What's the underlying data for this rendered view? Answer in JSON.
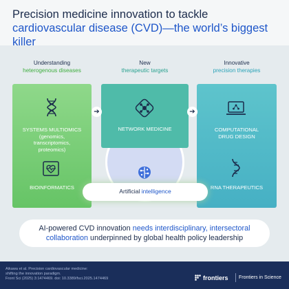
{
  "title": {
    "line1": "Precision medicine innovation to tackle",
    "line2": "cardiovascular disease (CVD)—the world’s biggest killer"
  },
  "columns": [
    {
      "head1": "Understanding",
      "head2": "heterogenous diseases",
      "head2_color": "#3fae3f"
    },
    {
      "head1": "New",
      "head2": "therapeutic targets",
      "head2_color": "#2aa290"
    },
    {
      "head1": "Innovative",
      "head2": "precision therapies",
      "head2_color": "#2ba3b8"
    }
  ],
  "cards": {
    "systems": {
      "line1": "SYSTEMS MULTIOMICS",
      "line2": "(genomics,",
      "line3": "transcriptomics,",
      "line4": "proteomics)",
      "icon": "dna-icon"
    },
    "bioinformatics": {
      "label": "BIOINFORMATICS",
      "icon": "heart-monitor-icon"
    },
    "network": {
      "label": "NETWORK MEDICINE",
      "icon": "network-molecule-icon"
    },
    "drug": {
      "line1": "COMPUTATIONAL",
      "line2": "DRUG DESIGN",
      "icon": "laptop-icon"
    },
    "rna": {
      "label": "RNA THERAPEUTICS",
      "icon": "rna-helix-icon"
    }
  },
  "ai": {
    "part1": "Artificial ",
    "part2": "intelligence",
    "icon": "brain-circuit-icon"
  },
  "bottom": {
    "p1": "AI-powered CVD innovation ",
    "p2": "needs interdisciplinary, intersectoral",
    "p3": "collaboration",
    "p4": " underpinned by global health policy leadership"
  },
  "footer": {
    "cite1": "Aikawa et al. Precision cardiovascular medicine:",
    "cite2": "shifting the innovation paradigm.",
    "cite3": "Front Sci (2025) 3:1474469. doi: 10.3389/fsci.2025.1474469",
    "logo": "frontiers",
    "logo_sub": "Frontiers in Science"
  },
  "colors": {
    "navy": "#1b2b4b",
    "blue": "#1e56c9",
    "green_card": "#7ccf7a",
    "teal_card": "#4fbba9",
    "cyan_card": "#52b9c8",
    "footer_bg": "#1a2e5a"
  }
}
